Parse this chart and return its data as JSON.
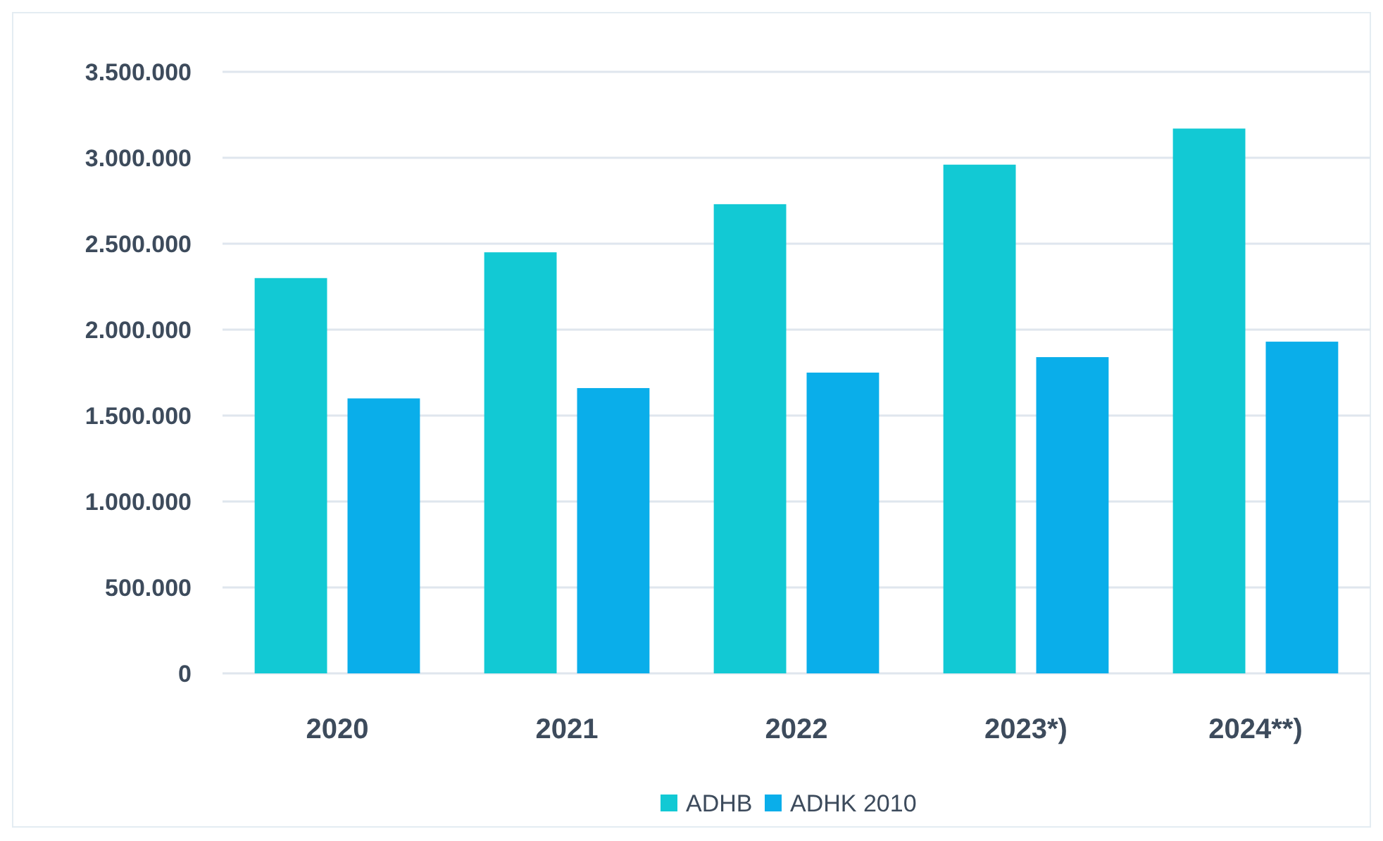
{
  "chart_data": {
    "type": "bar",
    "categories": [
      "2020",
      "2021",
      "2022",
      "2023*)",
      "2024**)"
    ],
    "series": [
      {
        "name": "ADHB",
        "color": "#12c9d4",
        "values": [
          2300000,
          2450000,
          2730000,
          2960000,
          3170000
        ]
      },
      {
        "name": "ADHK 2010",
        "color": "#0aaeea",
        "values": [
          1600000,
          1660000,
          1750000,
          1840000,
          1930000
        ]
      }
    ],
    "ylim": [
      0,
      3500000
    ],
    "yticks": [
      {
        "value": 0,
        "label": "0"
      },
      {
        "value": 500000,
        "label": "500.000"
      },
      {
        "value": 1000000,
        "label": "1.000.000"
      },
      {
        "value": 1500000,
        "label": "1.500.000"
      },
      {
        "value": 2000000,
        "label": "2.000.000"
      },
      {
        "value": 2500000,
        "label": "2.500.000"
      },
      {
        "value": 3000000,
        "label": "3.000.000"
      },
      {
        "value": 3500000,
        "label": "3.500.000"
      }
    ],
    "grid": "y",
    "legend": "bottom"
  }
}
